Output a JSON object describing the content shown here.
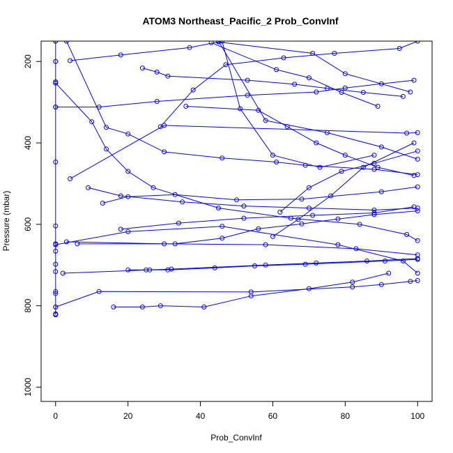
{
  "chart_data": {
    "type": "line",
    "title": "ATOM3 Northeast_Pacific_2 Prob_ConvInf",
    "xlabel": "Prob_ConvInf",
    "ylabel": "Pressure (mbar)",
    "xlim": [
      -4,
      104
    ],
    "ylim": [
      1035,
      150
    ],
    "y_axis_reversed": true,
    "xticks": [
      0,
      20,
      40,
      60,
      80,
      100
    ],
    "yticks": [
      200,
      400,
      600,
      800,
      1000
    ],
    "grid": false,
    "legend": "none",
    "color": "#0000ff",
    "marker": "open-circle",
    "series": [
      {
        "x": [
          0,
          0,
          0,
          0,
          0,
          0,
          0,
          0,
          0,
          0,
          0,
          0,
          0,
          0,
          0,
          0,
          0,
          0,
          0
        ],
        "y": [
          150,
          200,
          250,
          253,
          312,
          447,
          604,
          648,
          666,
          698,
          716,
          765,
          770,
          803,
          820,
          822,
          822,
          200,
          150
        ]
      },
      {
        "x": [
          0,
          10,
          14,
          20,
          27,
          45,
          65,
          84,
          97,
          100
        ],
        "y": [
          253,
          348,
          415,
          470,
          510,
          560,
          585,
          600,
          625,
          640
        ]
      },
      {
        "x": [
          3,
          14,
          20,
          30,
          46,
          61,
          69,
          88,
          100
        ],
        "y": [
          150,
          362,
          378,
          422,
          437,
          447,
          455,
          465,
          478
        ]
      },
      {
        "x": [
          0,
          12,
          28,
          53,
          72,
          80,
          90,
          99
        ],
        "y": [
          312,
          312,
          298,
          283,
          275,
          265,
          255,
          246
        ]
      },
      {
        "x": [
          4,
          30,
          97,
          100
        ],
        "y": [
          488,
          357,
          376,
          375
        ]
      },
      {
        "x": [
          9,
          18,
          35,
          52,
          70,
          88,
          100
        ],
        "y": [
          510,
          530,
          545,
          555,
          560,
          565,
          560
        ]
      },
      {
        "x": [
          13,
          20,
          33,
          50,
          68,
          90,
          100
        ],
        "y": [
          548,
          532,
          527,
          540,
          538,
          520,
          508
        ]
      },
      {
        "x": [
          18,
          34,
          52,
          71,
          88,
          99
        ],
        "y": [
          612,
          597,
          585,
          578,
          572,
          557
        ]
      },
      {
        "x": [
          3,
          30,
          58,
          83,
          100
        ],
        "y": [
          643,
          648,
          650,
          660,
          675
        ]
      },
      {
        "x": [
          6,
          33,
          46,
          56,
          68,
          78,
          88,
          100
        ],
        "y": [
          648,
          648,
          634,
          611,
          599,
          587,
          576,
          567
        ]
      },
      {
        "x": [
          0,
          20,
          46,
          78,
          96,
          100
        ],
        "y": [
          650,
          618,
          605,
          650,
          690,
          720
        ]
      },
      {
        "x": [
          20,
          25,
          31,
          44,
          55,
          69,
          91,
          100
        ],
        "y": [
          712,
          712,
          712,
          707,
          702,
          698,
          690,
          686
        ]
      },
      {
        "x": [
          2,
          26,
          32,
          58,
          72,
          86,
          100
        ],
        "y": [
          720,
          712,
          710,
          700,
          695,
          690,
          684
        ]
      },
      {
        "x": [
          0,
          12,
          54,
          82,
          90,
          98,
          100
        ],
        "y": [
          803,
          765,
          766,
          754,
          748,
          740,
          738
        ]
      },
      {
        "x": [
          16,
          24,
          29,
          41,
          54,
          70,
          82,
          92
        ],
        "y": [
          803,
          803,
          800,
          803,
          776,
          758,
          742,
          720
        ]
      },
      {
        "x": [
          4,
          18,
          37,
          45,
          71,
          80,
          98
        ],
        "y": [
          198,
          184,
          166,
          152,
          180,
          230,
          275
        ]
      },
      {
        "x": [
          46,
          51,
          60,
          73,
          88
        ],
        "y": [
          150,
          316,
          430,
          460,
          430
        ]
      },
      {
        "x": [
          29,
          38,
          47,
          63,
          77,
          95,
          100
        ],
        "y": [
          360,
          270,
          208,
          191,
          180,
          168,
          150
        ]
      },
      {
        "x": [
          24,
          28,
          31,
          53,
          66,
          75,
          85,
          96
        ],
        "y": [
          216,
          226,
          236,
          246,
          256,
          266,
          276,
          286
        ]
      },
      {
        "x": [
          43,
          61,
          70,
          79,
          89
        ],
        "y": [
          154,
          220,
          240,
          276,
          310
        ]
      },
      {
        "x": [
          45,
          58,
          75,
          90,
          100
        ],
        "y": [
          150,
          345,
          375,
          410,
          440
        ]
      },
      {
        "x": [
          36,
          56,
          64,
          72,
          80,
          89,
          99
        ],
        "y": [
          310,
          320,
          360,
          400,
          430,
          460,
          480
        ]
      },
      {
        "x": [
          60,
          67,
          76,
          85,
          99
        ],
        "y": [
          630,
          588,
          530,
          460,
          400
        ]
      },
      {
        "x": [
          62,
          70,
          79,
          88,
          100
        ],
        "y": [
          570,
          510,
          470,
          450,
          420
        ]
      }
    ]
  }
}
